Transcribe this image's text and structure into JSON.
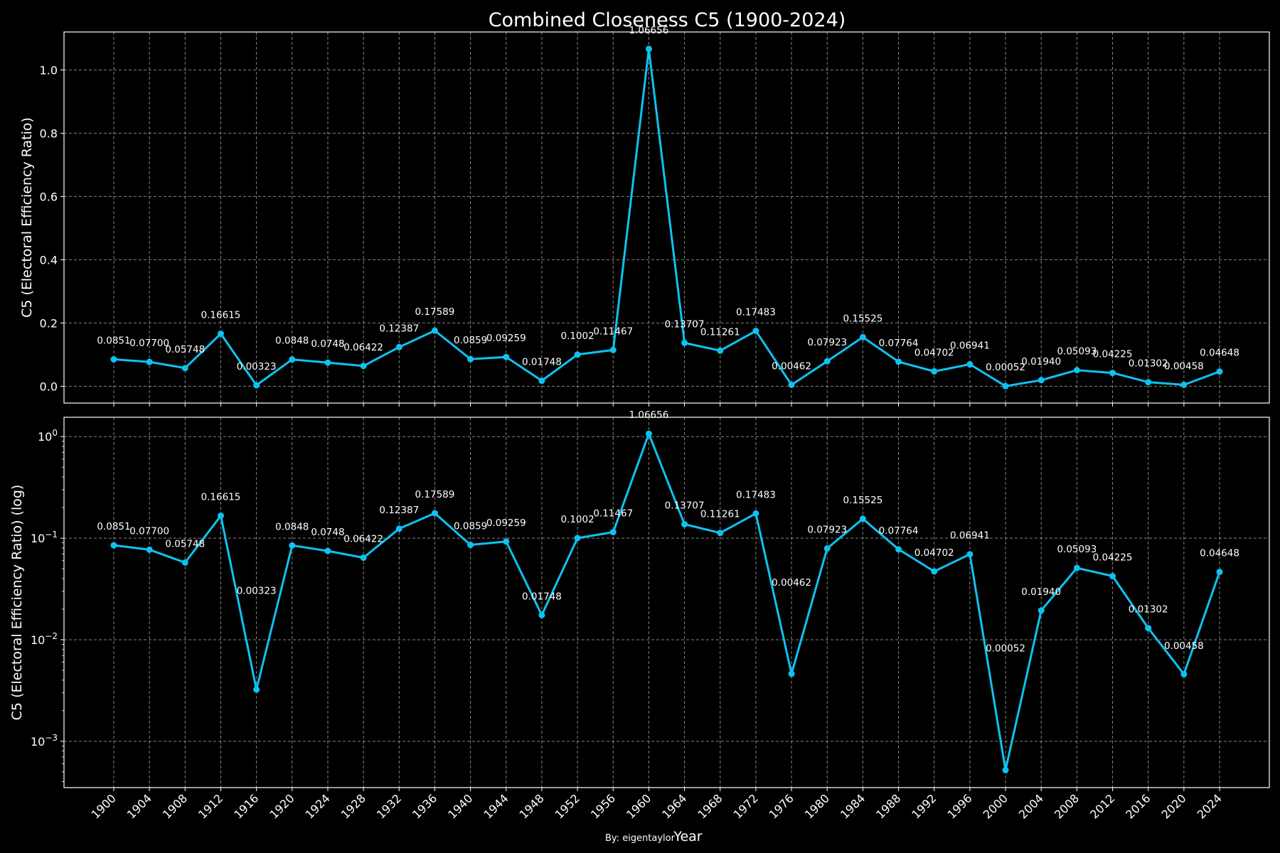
{
  "title": "Combined Closeness C5 (1900-2024)",
  "footer": "By: eigentaylor",
  "colors": {
    "background": "#000000",
    "series": "#0ec2f0",
    "grid": "#b0b0b0",
    "text": "#ffffff"
  },
  "chart_data": [
    {
      "type": "line",
      "title": "Combined Closeness C5 (1900-2024)",
      "xlabel": "",
      "ylabel": "C5 (Electoral Efficiency Ratio)",
      "yscale": "linear",
      "ylim": [
        -0.053,
        1.12
      ],
      "yticks": [
        "0.0",
        "0.2",
        "0.4",
        "0.6",
        "0.8",
        "1.0"
      ],
      "grid": true,
      "x": [
        1900,
        1904,
        1908,
        1912,
        1916,
        1920,
        1924,
        1928,
        1932,
        1936,
        1940,
        1944,
        1948,
        1952,
        1956,
        1960,
        1964,
        1968,
        1972,
        1976,
        1980,
        1984,
        1988,
        1992,
        1996,
        2000,
        2004,
        2008,
        2012,
        2016,
        2020,
        2024
      ],
      "values": [
        0.0851,
        0.077,
        0.05748,
        0.16615,
        0.00323,
        0.0848,
        0.0748,
        0.06422,
        0.12387,
        0.17589,
        0.0859,
        0.09259,
        0.01748,
        0.1002,
        0.11467,
        1.06656,
        0.13707,
        0.11261,
        0.17483,
        0.00462,
        0.07923,
        0.15525,
        0.07764,
        0.04702,
        0.06941,
        0.00052,
        0.0194,
        0.05093,
        0.04225,
        0.01302,
        0.00458,
        0.04648
      ],
      "data_labels": [
        "0.0851",
        "0.07700",
        "0.05748",
        "0.16615",
        "0.00323",
        "0.0848",
        "0.0748",
        "0.06422",
        "0.12387",
        "0.17589",
        "0.0859",
        "0.09259",
        "0.01748",
        "0.1002",
        "0.11467",
        "1.06656",
        "0.13707",
        "0.11261",
        "0.17483",
        "0.00462",
        "0.07923",
        "0.15525",
        "0.07764",
        "0.04702",
        "0.06941",
        "0.00052",
        "0.01940",
        "0.05093",
        "0.04225",
        "0.01302",
        "0.00458",
        "0.04648"
      ]
    },
    {
      "type": "line",
      "title": "",
      "xlabel": "Year",
      "ylabel": "C5 (Electoral Efficiency Ratio) (log)",
      "yscale": "log",
      "ylim": [
        0.00035,
        1.55
      ],
      "yticks": [
        "10^-3",
        "10^-2",
        "10^-1",
        "10^0"
      ],
      "grid": true,
      "x": [
        1900,
        1904,
        1908,
        1912,
        1916,
        1920,
        1924,
        1928,
        1932,
        1936,
        1940,
        1944,
        1948,
        1952,
        1956,
        1960,
        1964,
        1968,
        1972,
        1976,
        1980,
        1984,
        1988,
        1992,
        1996,
        2000,
        2004,
        2008,
        2012,
        2016,
        2020,
        2024
      ],
      "values": [
        0.0851,
        0.077,
        0.05748,
        0.16615,
        0.00323,
        0.0848,
        0.0748,
        0.06422,
        0.12387,
        0.17589,
        0.0859,
        0.09259,
        0.01748,
        0.1002,
        0.11467,
        1.06656,
        0.13707,
        0.11261,
        0.17483,
        0.00462,
        0.07923,
        0.15525,
        0.07764,
        0.04702,
        0.06941,
        0.00052,
        0.0194,
        0.05093,
        0.04225,
        0.01302,
        0.00458,
        0.04648
      ],
      "data_labels": [
        "0.0851",
        "0.07700",
        "0.05748",
        "0.16615",
        "0.00323",
        "0.0848",
        "0.0748",
        "0.06422",
        "0.12387",
        "0.17589",
        "0.0859",
        "0.09259",
        "0.01748",
        "0.1002",
        "0.11467",
        "1.06656",
        "0.13707",
        "0.11261",
        "0.17483",
        "0.00462",
        "0.07923",
        "0.15525",
        "0.07764",
        "0.04702",
        "0.06941",
        "0.00052",
        "0.01940",
        "0.05093",
        "0.04225",
        "0.01302",
        "0.00458",
        "0.04648"
      ]
    }
  ]
}
